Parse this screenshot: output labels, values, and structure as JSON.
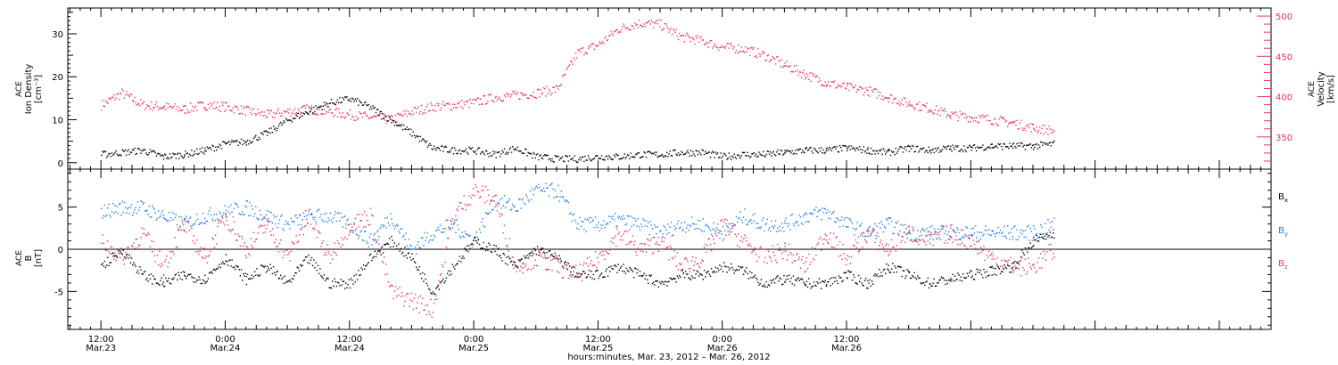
{
  "chart_data": [
    {
      "type": "scatter",
      "panel": "top",
      "ylabel_left": [
        "ACE",
        "Ion Density",
        "[cm⁻³]"
      ],
      "ylabel_right": [
        "ACE",
        "Velocity",
        "[km/s]"
      ],
      "ylim_left": [
        -1.5,
        36
      ],
      "ylim_right": [
        310,
        510
      ],
      "yticks_left": [
        "0",
        "10",
        "20",
        "30"
      ],
      "yticks_right": [
        "350",
        "400",
        "450",
        "500"
      ],
      "colors": {
        "density": "#000000",
        "velocity": "#e8345c"
      },
      "series": [
        {
          "key": "density",
          "axis": "left",
          "x": [
            0,
            2,
            4,
            6,
            8,
            10,
            12,
            14,
            16,
            18,
            20,
            22,
            24,
            26,
            28,
            30,
            32,
            34,
            36,
            38,
            40,
            42,
            44,
            46,
            48,
            50,
            52,
            54,
            56,
            58,
            60,
            62,
            64,
            66,
            68,
            70,
            72,
            74,
            76,
            78,
            80,
            82,
            84,
            86,
            88,
            90,
            92
          ],
          "values": [
            2,
            2.5,
            3,
            1.5,
            2,
            3,
            4.5,
            5,
            7,
            10,
            12,
            14,
            15,
            13,
            10,
            7,
            3.5,
            3,
            3,
            2,
            3.5,
            1.5,
            1,
            1,
            1.5,
            1.5,
            2,
            2,
            2.5,
            2.5,
            1.5,
            2,
            2,
            2.5,
            3,
            3,
            3.5,
            3,
            2.5,
            3.5,
            3,
            3.5,
            3.5,
            4,
            4,
            4,
            4.5
          ]
        },
        {
          "key": "velocity",
          "axis": "right",
          "x": [
            0,
            2,
            4,
            6,
            8,
            10,
            12,
            14,
            16,
            18,
            20,
            22,
            24,
            26,
            28,
            30,
            32,
            34,
            36,
            38,
            40,
            42,
            44,
            46,
            48,
            50,
            52,
            54,
            56,
            58,
            60,
            62,
            64,
            66,
            68,
            70,
            72,
            74,
            76,
            78,
            80,
            82,
            84,
            86,
            88,
            90,
            92
          ],
          "values": [
            390,
            405,
            390,
            388,
            385,
            390,
            388,
            383,
            378,
            382,
            385,
            382,
            378,
            375,
            372,
            382,
            388,
            390,
            393,
            400,
            402,
            405,
            410,
            455,
            465,
            485,
            492,
            490,
            475,
            470,
            462,
            460,
            452,
            440,
            428,
            418,
            412,
            408,
            400,
            392,
            386,
            378,
            375,
            372,
            368,
            362,
            358
          ]
        }
      ]
    },
    {
      "type": "scatter",
      "panel": "bottom",
      "ylabel_left": [
        "ACE",
        "B",
        "[nT]"
      ],
      "ylim": [
        -9.5,
        9.5
      ],
      "yticks_left": [
        "-5",
        "0",
        "5"
      ],
      "legend": [
        {
          "label": "B",
          "sub": "x",
          "color": "#000000"
        },
        {
          "label": "B",
          "sub": "y",
          "color": "#1a7fe6"
        },
        {
          "label": "B",
          "sub": "z",
          "color": "#e8345c"
        }
      ],
      "series": [
        {
          "key": "bx",
          "x": [
            0,
            2,
            4,
            6,
            8,
            10,
            12,
            14,
            16,
            18,
            20,
            22,
            24,
            26,
            28,
            30,
            32,
            34,
            36,
            38,
            40,
            42,
            44,
            46,
            48,
            50,
            52,
            54,
            56,
            58,
            60,
            62,
            64,
            66,
            68,
            70,
            72,
            74,
            76,
            78,
            80,
            82,
            84,
            86,
            88,
            90,
            92
          ],
          "values": [
            -2,
            0,
            -3,
            -4,
            -3,
            -3.5,
            -1,
            -3.5,
            -2,
            -4,
            -1,
            -4,
            -4,
            -1,
            1,
            -1,
            -5,
            -2,
            1,
            0,
            -2,
            0,
            -1,
            -3,
            -3,
            -2,
            -3,
            -4,
            -3,
            -3,
            -2,
            -2.5,
            -4,
            -3.5,
            -4,
            -4,
            -3,
            -4,
            -2,
            -3,
            -4,
            -3.5,
            -3,
            -2.5,
            -2,
            1,
            2
          ]
        },
        {
          "key": "by",
          "x": [
            0,
            2,
            4,
            6,
            8,
            10,
            12,
            14,
            16,
            18,
            20,
            22,
            24,
            26,
            28,
            30,
            32,
            34,
            36,
            38,
            40,
            42,
            44,
            46,
            48,
            50,
            52,
            54,
            56,
            58,
            60,
            62,
            64,
            66,
            68,
            70,
            72,
            74,
            76,
            78,
            80,
            82,
            84,
            86,
            88,
            90,
            92
          ],
          "values": [
            4.5,
            5,
            5,
            4,
            3,
            4,
            4.5,
            5,
            4,
            3,
            4,
            4,
            3,
            1,
            4,
            0,
            2,
            3,
            1,
            6,
            5,
            7,
            7,
            3,
            3,
            3.5,
            3,
            2,
            3,
            3,
            2,
            4,
            3,
            3,
            4,
            4.5,
            3,
            2,
            3,
            2,
            2,
            2,
            2,
            2,
            2,
            2,
            3
          ]
        },
        {
          "key": "bz",
          "x": [
            0,
            2,
            4,
            6,
            8,
            10,
            12,
            14,
            16,
            18,
            20,
            22,
            24,
            26,
            28,
            30,
            32,
            34,
            36,
            38,
            40,
            42,
            44,
            46,
            48,
            50,
            52,
            54,
            56,
            58,
            60,
            62,
            64,
            66,
            68,
            70,
            72,
            74,
            76,
            78,
            80,
            82,
            84,
            86,
            88,
            90,
            92
          ],
          "values": [
            1,
            -1,
            2,
            -2,
            3,
            -1,
            4,
            0,
            3,
            -1,
            4,
            -1,
            3,
            4,
            -5,
            -6,
            -7,
            4,
            7,
            6,
            -2,
            -1,
            -2,
            -3,
            -1,
            2,
            0,
            1,
            -2,
            -1,
            3,
            1,
            -1,
            0,
            -2,
            2,
            -1,
            2,
            0,
            2,
            1,
            2,
            1,
            -1,
            -2,
            -2,
            0
          ]
        }
      ]
    }
  ],
  "x_axis": {
    "unit_hours": true,
    "range": [
      -3.2,
      113
    ],
    "ticks": [
      {
        "h": 0,
        "time": "12:00",
        "date": "Mar.23"
      },
      {
        "h": 12,
        "time": "0:00",
        "date": "Mar.24"
      },
      {
        "h": 24,
        "time": "12:00",
        "date": "Mar.24"
      },
      {
        "h": 36,
        "time": "0:00",
        "date": "Mar.25"
      },
      {
        "h": 48,
        "time": "12:00",
        "date": "Mar.25"
      },
      {
        "h": 60,
        "time": "0:00",
        "date": "Mar.26"
      },
      {
        "h": 72,
        "time": "12:00",
        "date": "Mar.26"
      }
    ],
    "label": "hours:minutes, Mar. 23, 2012 – Mar. 26, 2012"
  }
}
